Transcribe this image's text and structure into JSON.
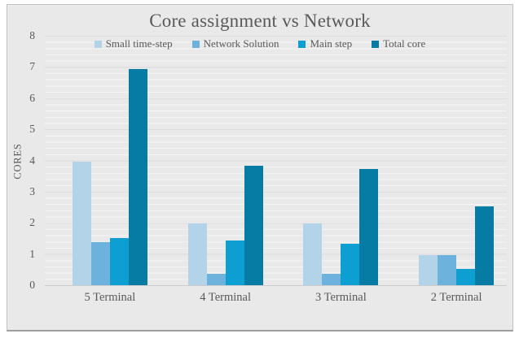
{
  "chart_data": {
    "type": "bar",
    "title": "Core assignment vs Network",
    "xlabel": "",
    "ylabel": "CORES",
    "categories": [
      "5 Terminal",
      "4 Terminal",
      "3 Terminal",
      "2 Terminal"
    ],
    "series": [
      {
        "name": "Small time-step",
        "color": "#b2d3e8",
        "values": [
          4.0,
          2.0,
          2.0,
          1.0
        ]
      },
      {
        "name": "Network Solution",
        "color": "#6cb2dc",
        "values": [
          1.4,
          0.4,
          0.4,
          1.0
        ]
      },
      {
        "name": "Main step",
        "color": "#0d9fd2",
        "values": [
          1.55,
          1.45,
          1.35,
          0.55
        ]
      },
      {
        "name": "Total core",
        "color": "#067ba4",
        "values": [
          6.95,
          3.85,
          3.75,
          2.55
        ]
      }
    ],
    "ylim": [
      0,
      8
    ],
    "yticks": [
      0,
      1,
      2,
      3,
      4,
      5,
      6,
      7,
      8
    ],
    "ytick_step": 1,
    "minor_grid_step": 0.2,
    "grid": true,
    "legend_position": "top-center",
    "plot_background": "#e9e9e9",
    "text_color": "#595959"
  }
}
